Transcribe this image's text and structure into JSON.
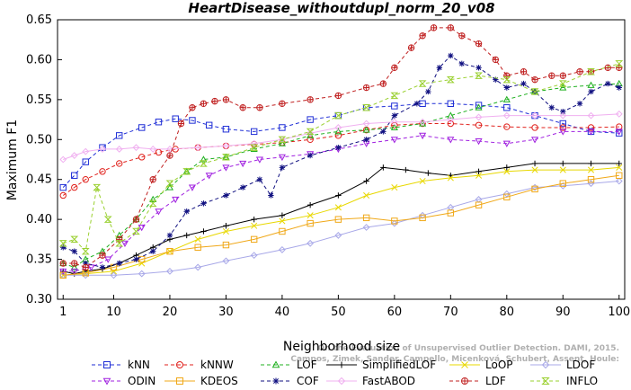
{
  "chart_data": {
    "type": "line",
    "title": "HeartDisease_withoutdupl_norm_20_v08",
    "xlabel": "Neighborhood size",
    "ylabel": "Maximum F1",
    "xlim": [
      0,
      101
    ],
    "ylim": [
      0.3,
      0.65
    ],
    "xticks": [
      1,
      10,
      20,
      30,
      40,
      50,
      60,
      70,
      80,
      90,
      100
    ],
    "yticks": [
      0.3,
      0.35,
      0.4,
      0.45,
      0.5,
      0.55,
      0.6,
      0.65
    ],
    "ytick_labels": [
      "0.30",
      "0.35",
      "0.40",
      "0.45",
      "0.50",
      "0.55",
      "0.60",
      "0.65"
    ],
    "grid": false,
    "legend_position": "bottom",
    "watermark": [
      "Campos, Zimek, Sander, Campello, Micenková, Schubert, Assent, Houle:",
      "On the Evaluation of Unsupervised Outlier Detection. DAMI, 2015."
    ],
    "series": [
      {
        "name": "kNN",
        "color": "#1f2ed6",
        "marker": "square",
        "dash": "4,3",
        "x": [
          1,
          3,
          5,
          8,
          11,
          15,
          18,
          21,
          24,
          27,
          30,
          35,
          40,
          45,
          50,
          55,
          60,
          65,
          70,
          75,
          80,
          85,
          90,
          95,
          100
        ],
        "y": [
          0.44,
          0.455,
          0.472,
          0.49,
          0.505,
          0.515,
          0.522,
          0.526,
          0.524,
          0.518,
          0.513,
          0.51,
          0.515,
          0.525,
          0.53,
          0.54,
          0.542,
          0.545,
          0.545,
          0.543,
          0.54,
          0.53,
          0.52,
          0.51,
          0.508
        ]
      },
      {
        "name": "kNNW",
        "color": "#e0211c",
        "marker": "circle",
        "dash": "4,3",
        "x": [
          1,
          3,
          5,
          8,
          11,
          15,
          18,
          21,
          25,
          30,
          35,
          40,
          45,
          50,
          55,
          60,
          65,
          70,
          75,
          80,
          85,
          90,
          95,
          100
        ],
        "y": [
          0.43,
          0.44,
          0.45,
          0.46,
          0.47,
          0.478,
          0.484,
          0.488,
          0.49,
          0.492,
          0.494,
          0.496,
          0.5,
          0.505,
          0.512,
          0.518,
          0.52,
          0.52,
          0.518,
          0.516,
          0.515,
          0.515,
          0.515,
          0.516
        ]
      },
      {
        "name": "LOF",
        "color": "#20b020",
        "marker": "triangle-up",
        "dash": "4,3",
        "x": [
          1,
          3,
          5,
          8,
          11,
          14,
          17,
          20,
          23,
          26,
          30,
          35,
          40,
          45,
          50,
          55,
          60,
          65,
          70,
          75,
          80,
          85,
          90,
          95,
          100
        ],
        "y": [
          0.345,
          0.34,
          0.35,
          0.36,
          0.38,
          0.4,
          0.425,
          0.44,
          0.46,
          0.475,
          0.478,
          0.488,
          0.495,
          0.505,
          0.51,
          0.512,
          0.515,
          0.52,
          0.53,
          0.54,
          0.55,
          0.56,
          0.565,
          0.568,
          0.57
        ]
      },
      {
        "name": "SimplifiedLOF",
        "color": "#000000",
        "marker": "plus",
        "dash": "",
        "x": [
          1,
          3,
          5,
          8,
          11,
          14,
          17,
          20,
          23,
          26,
          30,
          35,
          40,
          45,
          50,
          55,
          58,
          62,
          66,
          70,
          75,
          80,
          85,
          90,
          95,
          100
        ],
        "y": [
          0.335,
          0.332,
          0.335,
          0.338,
          0.345,
          0.355,
          0.365,
          0.375,
          0.38,
          0.385,
          0.392,
          0.4,
          0.405,
          0.418,
          0.43,
          0.448,
          0.465,
          0.462,
          0.458,
          0.455,
          0.46,
          0.465,
          0.47,
          0.47,
          0.47,
          0.47
        ]
      },
      {
        "name": "LoOP",
        "color": "#e8d800",
        "marker": "x",
        "dash": "",
        "x": [
          1,
          5,
          10,
          15,
          20,
          25,
          30,
          35,
          40,
          45,
          50,
          55,
          60,
          65,
          70,
          75,
          80,
          85,
          90,
          95,
          100
        ],
        "y": [
          0.33,
          0.332,
          0.335,
          0.345,
          0.36,
          0.375,
          0.385,
          0.392,
          0.398,
          0.405,
          0.415,
          0.43,
          0.44,
          0.448,
          0.452,
          0.455,
          0.46,
          0.462,
          0.462,
          0.462,
          0.465
        ]
      },
      {
        "name": "LDOF",
        "color": "#a8a8e8",
        "marker": "diamond",
        "dash": "",
        "x": [
          1,
          5,
          10,
          15,
          20,
          25,
          30,
          35,
          40,
          45,
          50,
          55,
          60,
          65,
          70,
          75,
          80,
          85,
          90,
          95,
          100
        ],
        "y": [
          0.33,
          0.33,
          0.33,
          0.332,
          0.335,
          0.34,
          0.348,
          0.355,
          0.362,
          0.37,
          0.38,
          0.39,
          0.395,
          0.405,
          0.415,
          0.425,
          0.432,
          0.44,
          0.442,
          0.445,
          0.448
        ]
      },
      {
        "name": "ODIN",
        "color": "#a020e0",
        "marker": "triangle-down",
        "dash": "4,3",
        "x": [
          1,
          3,
          6,
          9,
          12,
          15,
          18,
          21,
          24,
          27,
          30,
          33,
          36,
          40,
          45,
          50,
          55,
          60,
          65,
          70,
          75,
          80,
          85,
          90,
          95,
          100
        ],
        "y": [
          0.335,
          0.335,
          0.34,
          0.35,
          0.37,
          0.39,
          0.41,
          0.425,
          0.44,
          0.455,
          0.465,
          0.47,
          0.475,
          0.478,
          0.482,
          0.488,
          0.495,
          0.5,
          0.505,
          0.5,
          0.498,
          0.495,
          0.5,
          0.51,
          0.51,
          0.51
        ]
      },
      {
        "name": "KDEOS",
        "color": "#f0a818",
        "marker": "square",
        "dash": "",
        "x": [
          1,
          5,
          10,
          15,
          20,
          25,
          30,
          35,
          40,
          45,
          50,
          55,
          60,
          65,
          70,
          75,
          80,
          85,
          90,
          95,
          100
        ],
        "y": [
          0.33,
          0.333,
          0.34,
          0.35,
          0.36,
          0.365,
          0.368,
          0.375,
          0.385,
          0.395,
          0.4,
          0.402,
          0.398,
          0.402,
          0.408,
          0.418,
          0.428,
          0.438,
          0.445,
          0.45,
          0.455
        ]
      },
      {
        "name": "COF",
        "color": "#101080",
        "marker": "star",
        "dash": "4,3",
        "x": [
          1,
          3,
          5,
          8,
          11,
          14,
          17,
          20,
          23,
          26,
          30,
          33,
          36,
          38,
          40,
          45,
          50,
          55,
          58,
          60,
          64,
          66,
          68,
          70,
          72,
          75,
          78,
          80,
          83,
          85,
          88,
          90,
          93,
          95,
          98,
          100
        ],
        "y": [
          0.365,
          0.36,
          0.345,
          0.34,
          0.345,
          0.35,
          0.36,
          0.38,
          0.41,
          0.42,
          0.43,
          0.44,
          0.45,
          0.43,
          0.465,
          0.48,
          0.49,
          0.5,
          0.51,
          0.53,
          0.545,
          0.56,
          0.59,
          0.605,
          0.595,
          0.59,
          0.575,
          0.565,
          0.57,
          0.56,
          0.54,
          0.535,
          0.545,
          0.56,
          0.57,
          0.565
        ]
      },
      {
        "name": "FastABOD",
        "color": "#f0b0f0",
        "marker": "diamond",
        "dash": "",
        "x": [
          1,
          3,
          5,
          8,
          11,
          14,
          17,
          20,
          25,
          30,
          35,
          40,
          45,
          50,
          55,
          60,
          65,
          70,
          75,
          80,
          85,
          90,
          95,
          100
        ],
        "y": [
          0.475,
          0.48,
          0.485,
          0.488,
          0.488,
          0.49,
          0.488,
          0.488,
          0.49,
          0.492,
          0.495,
          0.5,
          0.508,
          0.515,
          0.52,
          0.522,
          0.522,
          0.525,
          0.528,
          0.53,
          0.53,
          0.53,
          0.53,
          0.532
        ]
      },
      {
        "name": "LDF",
        "color": "#c02020",
        "marker": "circle-plus",
        "dash": "4,3",
        "x": [
          1,
          3,
          5,
          8,
          11,
          14,
          17,
          20,
          22,
          24,
          26,
          28,
          30,
          33,
          36,
          40,
          45,
          50,
          55,
          58,
          60,
          63,
          65,
          67,
          70,
          72,
          75,
          78,
          80,
          83,
          85,
          88,
          90,
          93,
          95,
          98,
          100
        ],
        "y": [
          0.345,
          0.345,
          0.34,
          0.355,
          0.375,
          0.4,
          0.45,
          0.48,
          0.52,
          0.54,
          0.545,
          0.548,
          0.55,
          0.54,
          0.54,
          0.545,
          0.55,
          0.555,
          0.565,
          0.57,
          0.59,
          0.615,
          0.63,
          0.64,
          0.64,
          0.63,
          0.62,
          0.6,
          0.58,
          0.585,
          0.575,
          0.58,
          0.58,
          0.585,
          0.585,
          0.59,
          0.59
        ]
      },
      {
        "name": "INFLO",
        "color": "#9ad030",
        "marker": "hourglass",
        "dash": "4,3",
        "x": [
          1,
          3,
          5,
          7,
          9,
          11,
          14,
          17,
          20,
          23,
          26,
          30,
          35,
          40,
          45,
          50,
          55,
          60,
          65,
          70,
          75,
          80,
          85,
          90,
          95,
          100
        ],
        "y": [
          0.37,
          0.375,
          0.36,
          0.44,
          0.4,
          0.37,
          0.385,
          0.42,
          0.445,
          0.46,
          0.47,
          0.478,
          0.49,
          0.5,
          0.51,
          0.53,
          0.54,
          0.555,
          0.57,
          0.575,
          0.58,
          0.575,
          0.56,
          0.57,
          0.585,
          0.595
        ]
      }
    ]
  }
}
